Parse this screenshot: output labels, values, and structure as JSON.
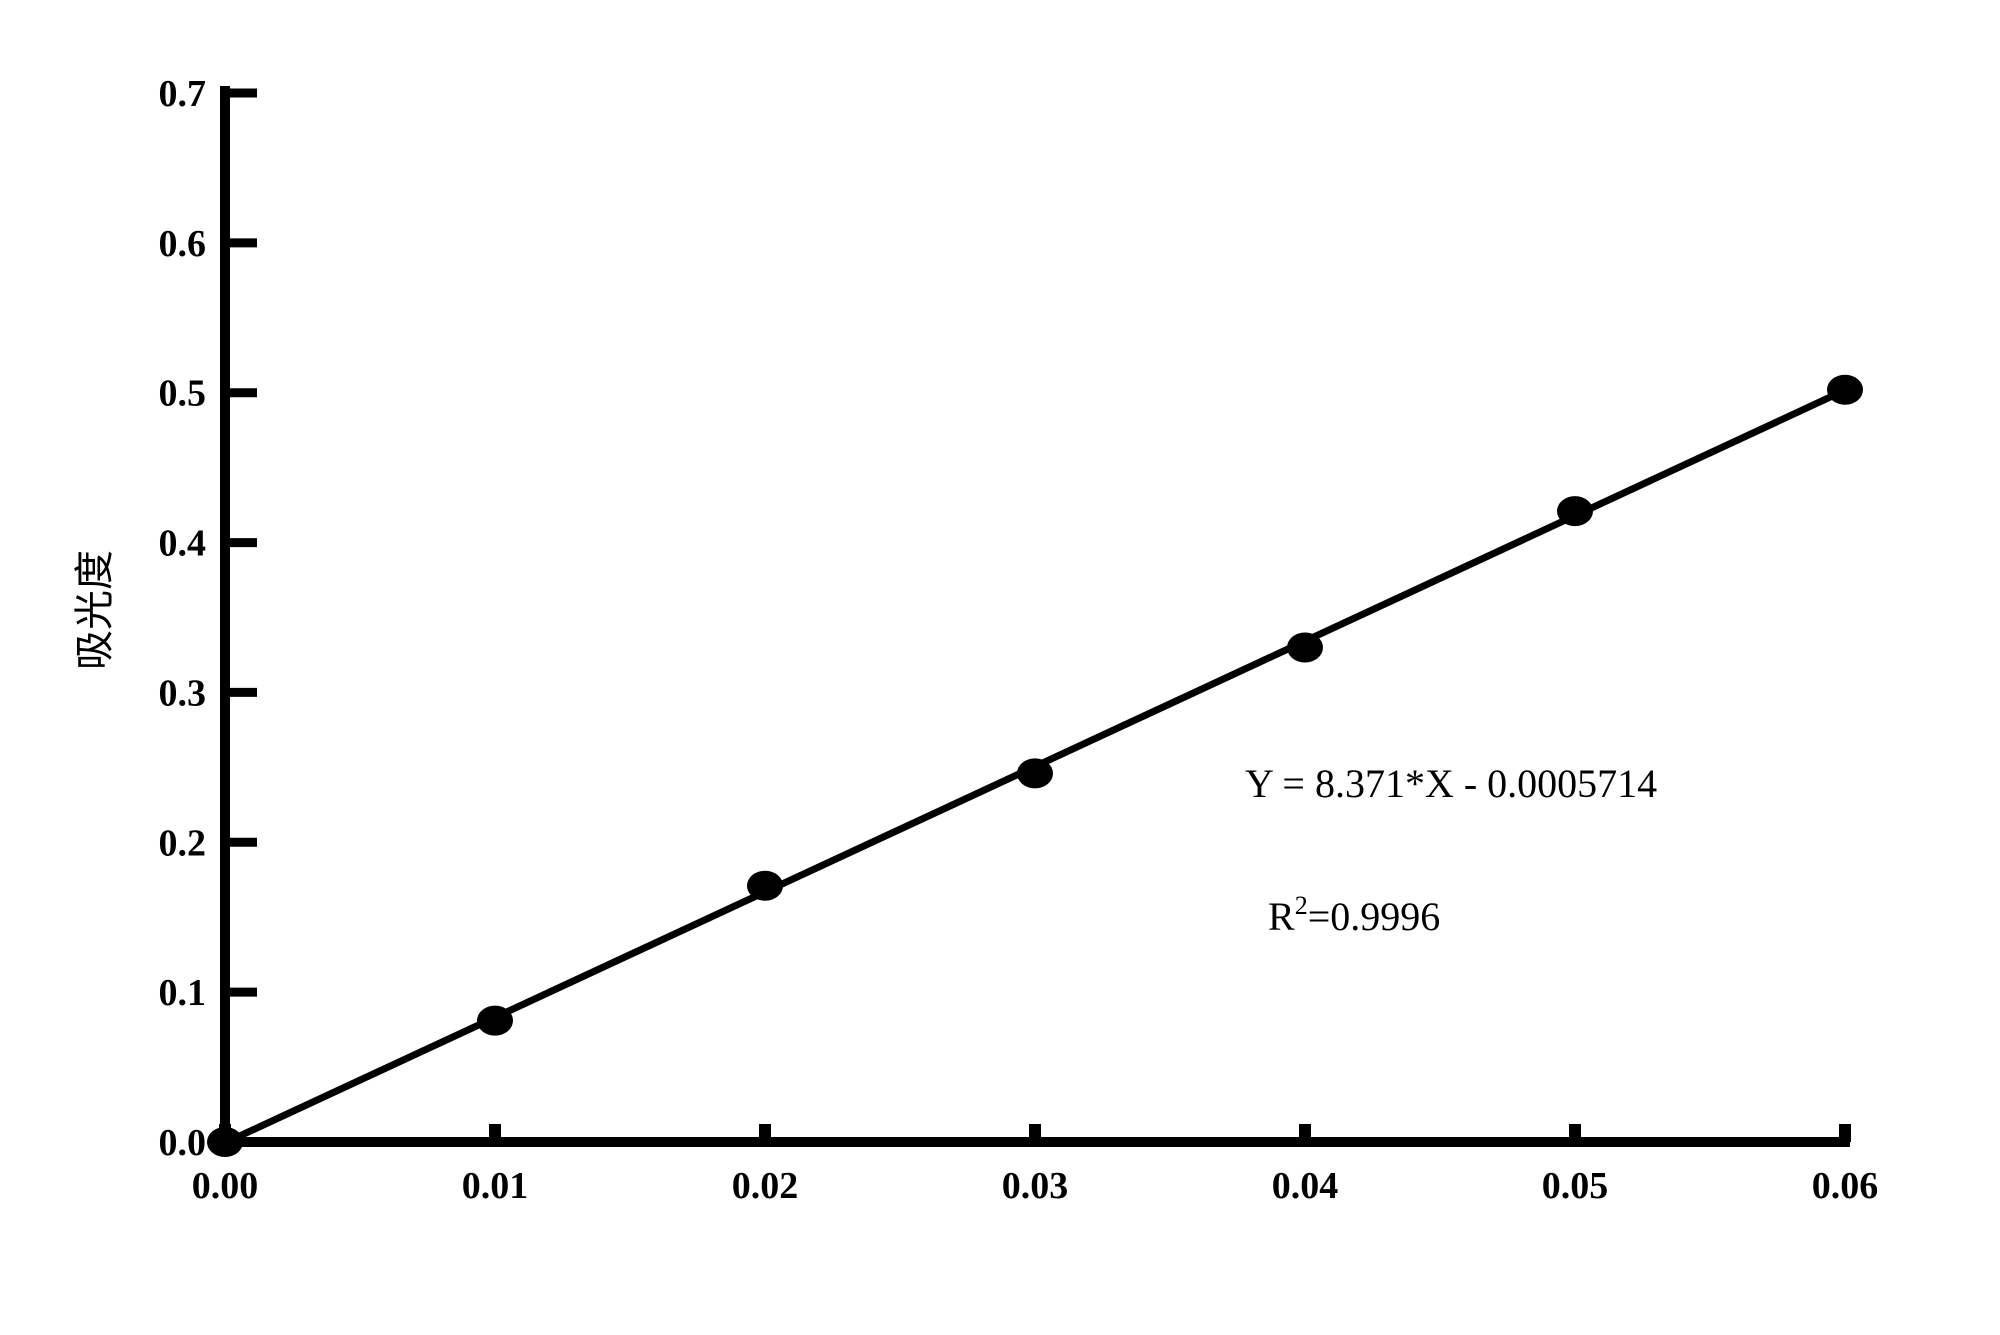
{
  "chart_data": {
    "type": "scatter",
    "title": "",
    "xlabel": "",
    "ylabel": "吸光度",
    "xlim": [
      0.0,
      0.06
    ],
    "ylim": [
      0.0,
      0.7
    ],
    "x_ticks": [
      "0.00",
      "0.01",
      "0.02",
      "0.03",
      "0.04",
      "0.05",
      "0.06"
    ],
    "y_ticks": [
      "0.0",
      "0.1",
      "0.2",
      "0.3",
      "0.4",
      "0.5",
      "0.6",
      "0.7"
    ],
    "grid": false,
    "legend": "none",
    "series": [
      {
        "x": [
          0.0,
          0.01,
          0.02,
          0.03,
          0.04,
          0.05,
          0.06
        ],
        "y": [
          0.0,
          0.081,
          0.171,
          0.246,
          0.33,
          0.421,
          0.502
        ]
      }
    ],
    "fit_line": {
      "slope": 8.371,
      "intercept": -0.0005714,
      "x_range": [
        0.0,
        0.06
      ]
    },
    "annotations": {
      "equation": "Y = 8.371*X - 0.0005714",
      "r2_prefix": "R",
      "r2_sup": "2",
      "r2_value": "=0.9996"
    },
    "colors": {
      "ink": "#000000",
      "background": "#ffffff"
    }
  }
}
